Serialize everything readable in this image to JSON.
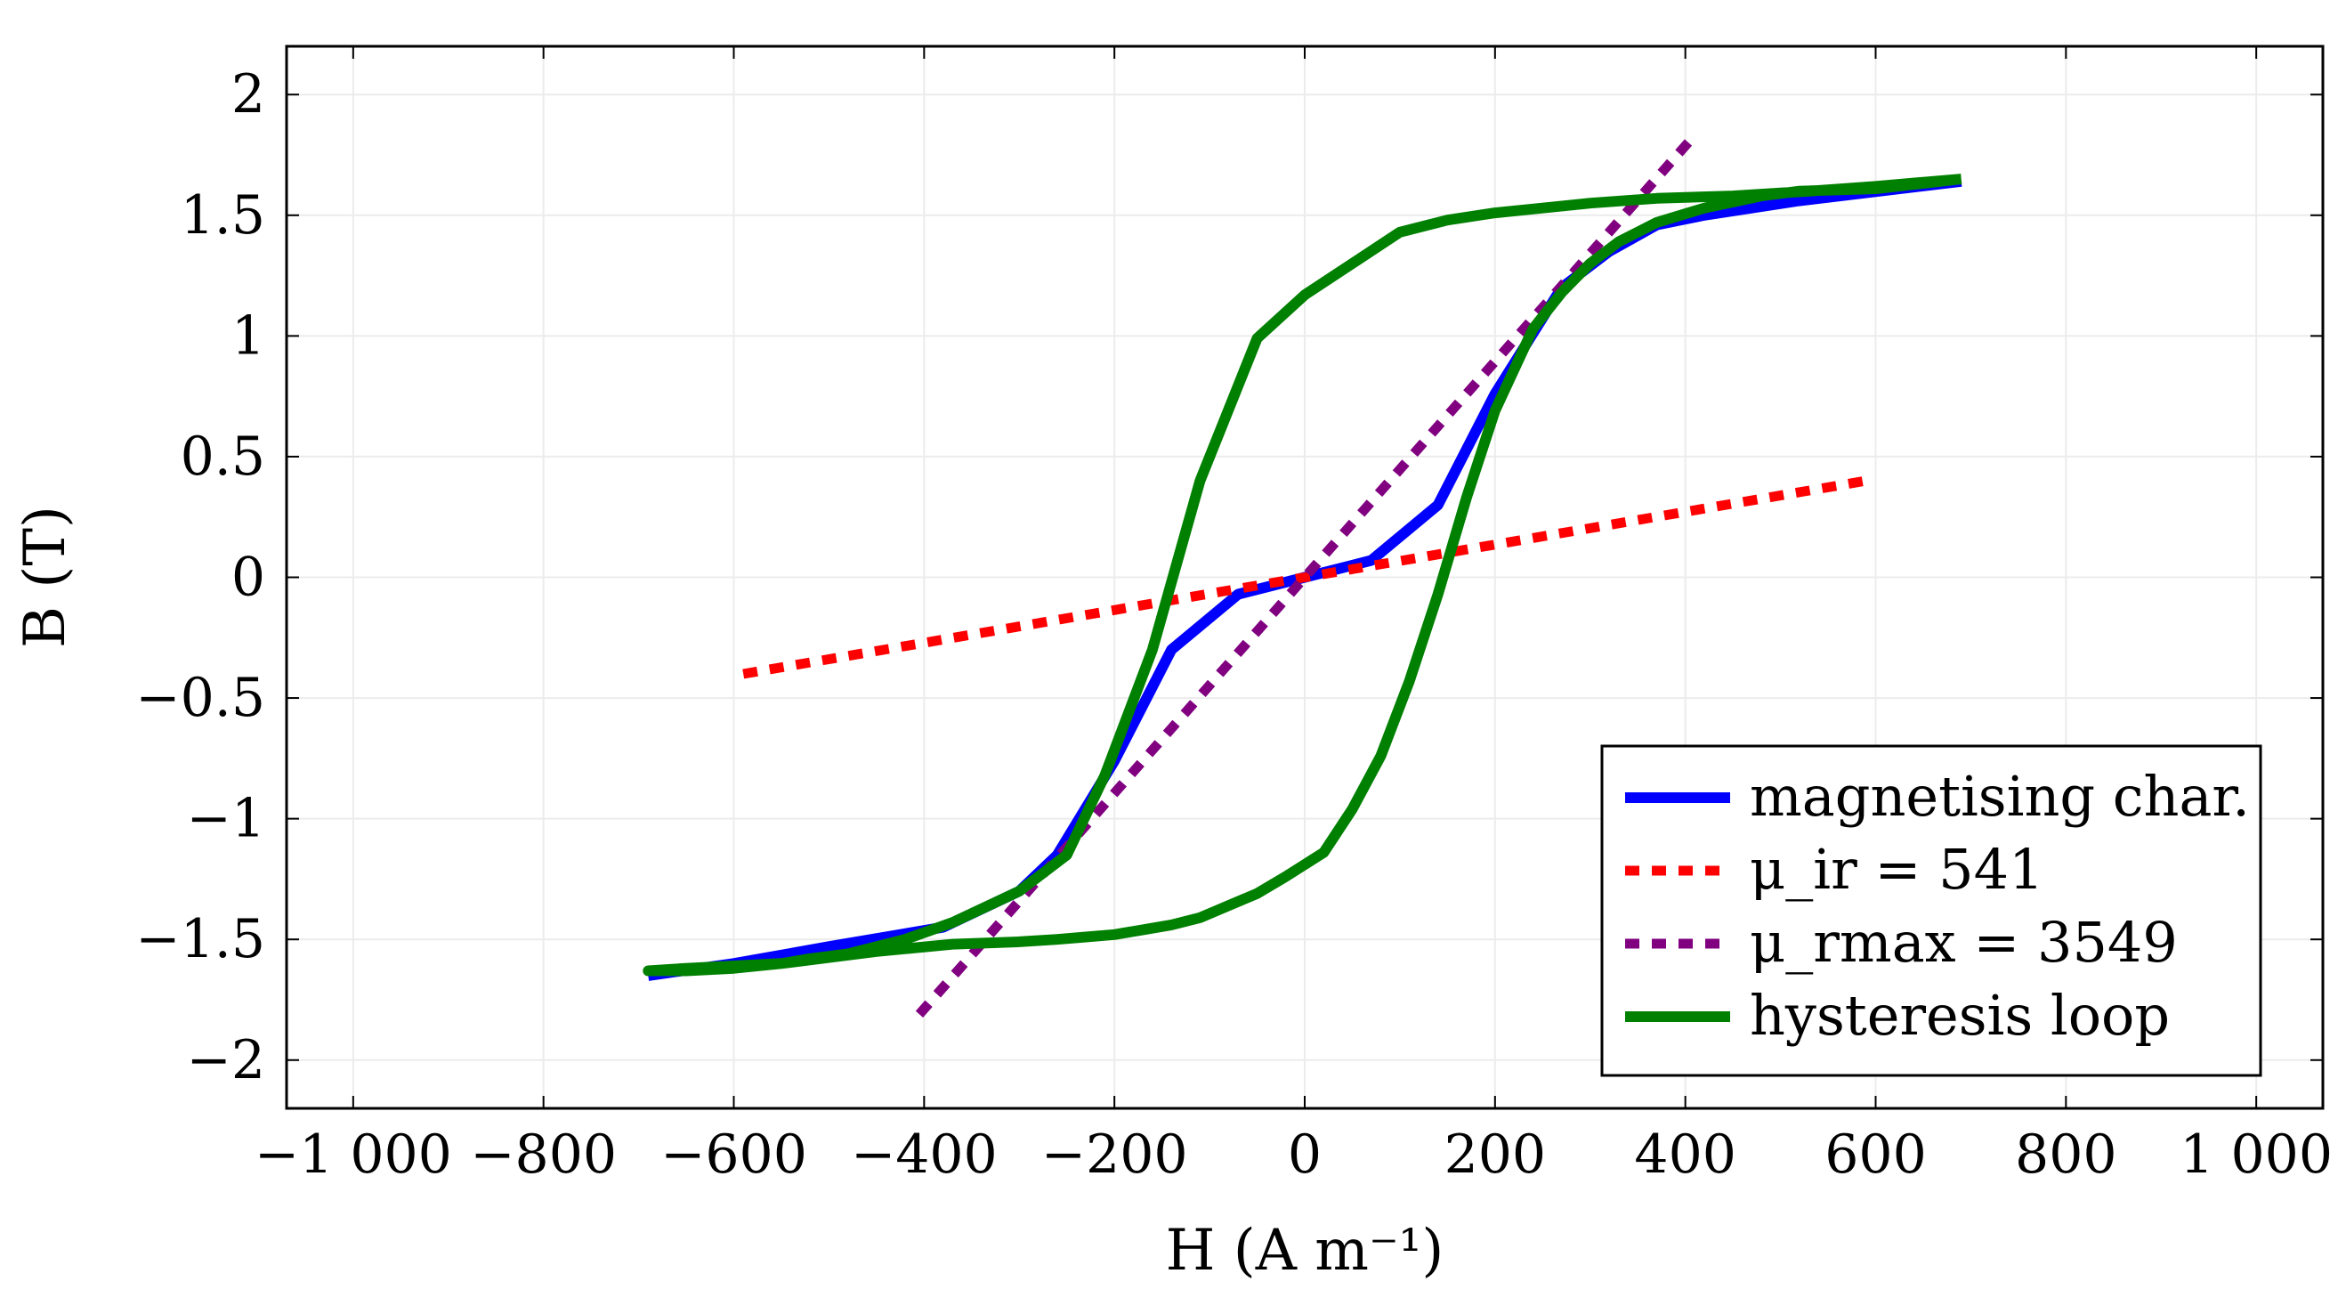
{
  "chart_data": {
    "type": "line",
    "title": "",
    "xlabel": "H (A m⁻¹)",
    "ylabel": "B (T)",
    "xlim": [
      -1070,
      1070
    ],
    "ylim": [
      -2.2,
      2.2
    ],
    "xticks": [
      -1000,
      -800,
      -600,
      -400,
      -200,
      0,
      200,
      400,
      600,
      800,
      1000
    ],
    "xtick_labels": [
      "−1 000",
      "−800",
      "−600",
      "−400",
      "−200",
      "0",
      "200",
      "400",
      "600",
      "800",
      "1 000"
    ],
    "yticks": [
      -2,
      -1.5,
      -1,
      -0.5,
      0,
      0.5,
      1,
      1.5,
      2
    ],
    "ytick_labels": [
      "−2",
      "−1.5",
      "−1",
      "−0.5",
      "0",
      "0.5",
      "1",
      "1.5",
      "2"
    ],
    "grid": true,
    "legend_position": "bottom-right",
    "series": [
      {
        "name": "magnetising char.",
        "color": "#0000ff",
        "dash": "solid",
        "x": [
          -690,
          -600,
          -500,
          -380,
          -300,
          -260,
          -200,
          -140,
          -70,
          0,
          70,
          140,
          200,
          270,
          320,
          370,
          420,
          520,
          690
        ],
        "y": [
          -1.65,
          -1.6,
          -1.53,
          -1.45,
          -1.3,
          -1.15,
          -0.76,
          -0.3,
          -0.07,
          0,
          0.07,
          0.3,
          0.76,
          1.2,
          1.35,
          1.46,
          1.5,
          1.56,
          1.64
        ]
      },
      {
        "name": "μ_ir = 541",
        "color": "#ff0000",
        "dash": "dotted",
        "x": [
          -590,
          590
        ],
        "y": [
          -0.4,
          0.4
        ]
      },
      {
        "name": "μ_rmax = 3549",
        "color": "#800080",
        "dash": "dotted",
        "x": [
          -405,
          405
        ],
        "y": [
          -1.81,
          1.81
        ]
      },
      {
        "name": "hysteresis loop",
        "color": "#008000",
        "dash": "solid",
        "x": [
          690,
          600,
          520,
          480,
          420,
          370,
          330,
          300,
          270,
          240,
          200,
          170,
          140,
          110,
          80,
          50,
          20,
          -20,
          -50,
          -80,
          -110,
          -140,
          -170,
          -200,
          -230,
          -260,
          -300,
          -370,
          -450,
          -550,
          -650,
          -690,
          -680,
          -650,
          -600,
          -550,
          -520,
          -480,
          -420,
          -370,
          -300,
          -250,
          -210,
          -160,
          -110,
          -50,
          0,
          50,
          100,
          150,
          200,
          250,
          300,
          370,
          450,
          530,
          600,
          660,
          690
        ],
        "y": [
          1.65,
          1.61,
          1.6,
          1.58,
          1.53,
          1.47,
          1.39,
          1.3,
          1.18,
          1.03,
          0.69,
          0.33,
          -0.07,
          -0.43,
          -0.74,
          -0.96,
          -1.14,
          -1.24,
          -1.31,
          -1.36,
          -1.41,
          -1.44,
          -1.46,
          -1.48,
          -1.49,
          -1.5,
          -1.51,
          -1.52,
          -1.55,
          -1.6,
          -1.62,
          -1.63,
          -1.63,
          -1.63,
          -1.62,
          -1.6,
          -1.58,
          -1.56,
          -1.5,
          -1.43,
          -1.3,
          -1.15,
          -0.82,
          -0.3,
          0.4,
          0.99,
          1.17,
          1.3,
          1.43,
          1.48,
          1.51,
          1.53,
          1.55,
          1.57,
          1.58,
          1.6,
          1.62,
          1.64,
          1.65
        ]
      }
    ]
  }
}
